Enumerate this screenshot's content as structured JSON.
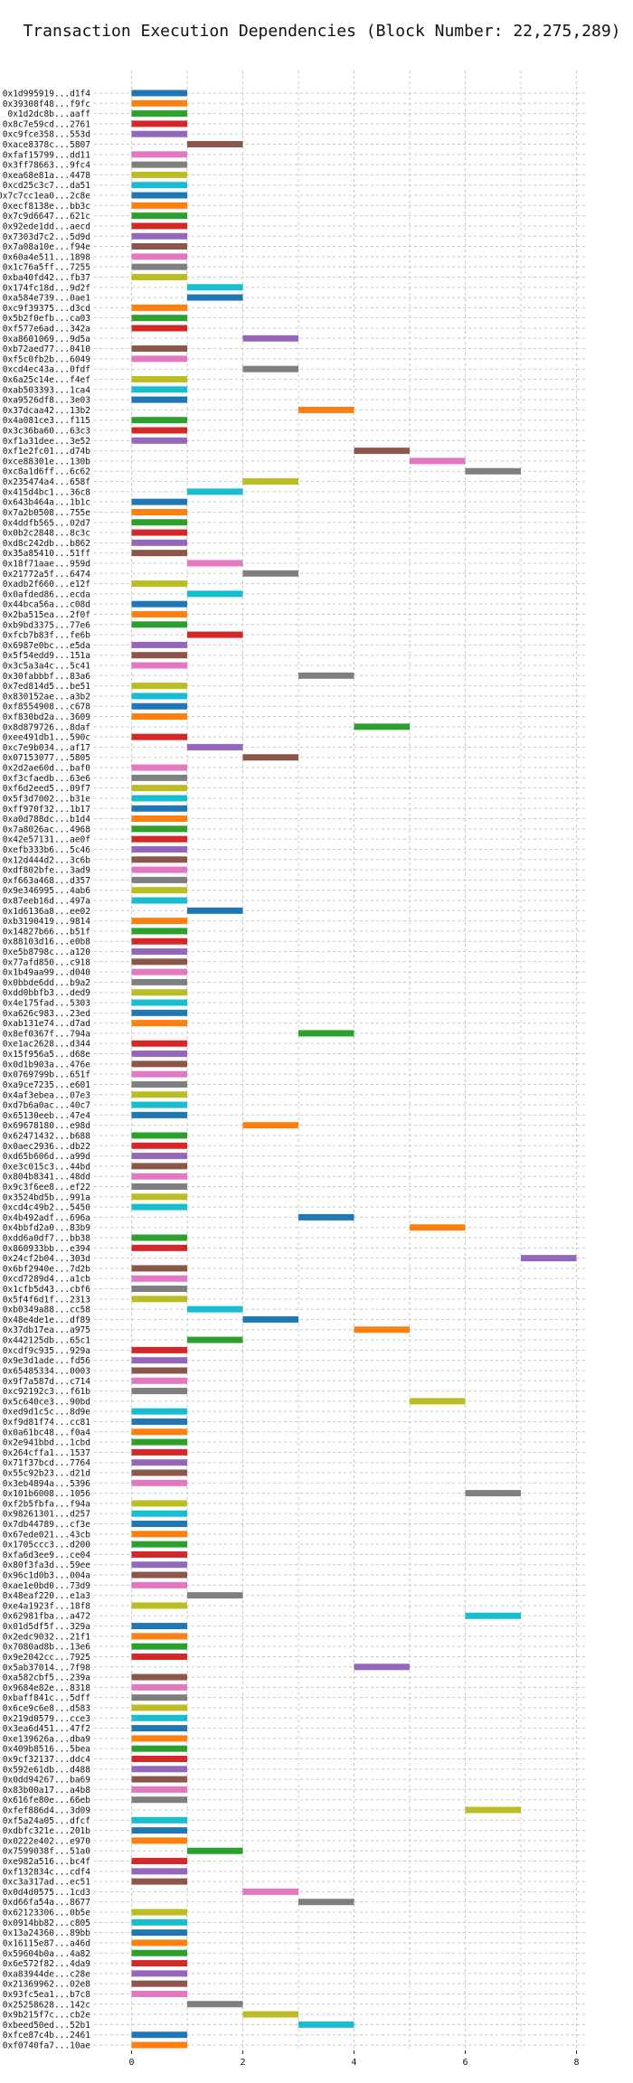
{
  "chart_data": {
    "type": "bar",
    "orientation": "horizontal-range",
    "title": "Transaction Execution Dependencies (Block Number: 22,275,289)",
    "xlabel": "",
    "ylabel": "",
    "xlim": [
      -0.6,
      8.2
    ],
    "xticks": [
      0,
      2,
      4,
      6,
      8
    ],
    "grid": true,
    "colors": [
      "#1f77b4",
      "#ff7f0e",
      "#2ca02c",
      "#d62728",
      "#9467bd",
      "#8c564b",
      "#e377c2",
      "#7f7f7f",
      "#bcbd22",
      "#17becf"
    ],
    "transactions": [
      {
        "label": "0x1d995919...d1f4",
        "start": 0,
        "end": 1
      },
      {
        "label": "0x39308f48...f9fc",
        "start": 0,
        "end": 1
      },
      {
        "label": "0x1d2dc8b...aaff",
        "start": 0,
        "end": 1
      },
      {
        "label": "0x8c7e59cd...2761",
        "start": 0,
        "end": 1
      },
      {
        "label": "0xc9fce358...553d",
        "start": 0,
        "end": 1
      },
      {
        "label": "0xace8378c...5807",
        "start": 1,
        "end": 2
      },
      {
        "label": "0xfaf15799...dd11",
        "start": 0,
        "end": 1
      },
      {
        "label": "0x3ff78663...9fc4",
        "start": 0,
        "end": 1
      },
      {
        "label": "0xea68e81a...4478",
        "start": 0,
        "end": 1
      },
      {
        "label": "0xcd25c3c7...da51",
        "start": 0,
        "end": 1
      },
      {
        "label": "0x7c7cc1ea0...2c8e",
        "start": 0,
        "end": 1
      },
      {
        "label": "0xecf8138e...bb3c",
        "start": 0,
        "end": 1
      },
      {
        "label": "0x7c9d6647...621c",
        "start": 0,
        "end": 1
      },
      {
        "label": "0x92ede1dd...aecd",
        "start": 0,
        "end": 1
      },
      {
        "label": "0x7303d7c2...5d9d",
        "start": 0,
        "end": 1
      },
      {
        "label": "0x7a08a10e...f94e",
        "start": 0,
        "end": 1
      },
      {
        "label": "0x60a4e511...1898",
        "start": 0,
        "end": 1
      },
      {
        "label": "0x1c76a5ff...7255",
        "start": 0,
        "end": 1
      },
      {
        "label": "0xba40fd42...fb37",
        "start": 0,
        "end": 1
      },
      {
        "label": "0x174fc18d...9d2f",
        "start": 1,
        "end": 2
      },
      {
        "label": "0xa584e739...0ae1",
        "start": 1,
        "end": 2
      },
      {
        "label": "0xc9f39375...d3cd",
        "start": 0,
        "end": 1
      },
      {
        "label": "0x5b2f0efb...ca03",
        "start": 0,
        "end": 1
      },
      {
        "label": "0xf577e6ad...342a",
        "start": 0,
        "end": 1
      },
      {
        "label": "0xa8601069...9d5a",
        "start": 2,
        "end": 3
      },
      {
        "label": "0xb72aed77...0410",
        "start": 0,
        "end": 1
      },
      {
        "label": "0xf5c0fb2b...6049",
        "start": 0,
        "end": 1
      },
      {
        "label": "0xcd4ec43a...0fdf",
        "start": 2,
        "end": 3
      },
      {
        "label": "0x6a25c14e...f4ef",
        "start": 0,
        "end": 1
      },
      {
        "label": "0xab503393...1ca4",
        "start": 0,
        "end": 1
      },
      {
        "label": "0xa9526df8...3e03",
        "start": 0,
        "end": 1
      },
      {
        "label": "0x37dcaa42...13b2",
        "start": 3,
        "end": 4
      },
      {
        "label": "0x4a081ce3...f115",
        "start": 0,
        "end": 1
      },
      {
        "label": "0x3c36ba60...63c3",
        "start": 0,
        "end": 1
      },
      {
        "label": "0xf1a31dee...3e52",
        "start": 0,
        "end": 1
      },
      {
        "label": "0xf1e2fc01...d74b",
        "start": 4,
        "end": 5
      },
      {
        "label": "0xce88301e...130b",
        "start": 5,
        "end": 6
      },
      {
        "label": "0xc8a1d6ff...6c62",
        "start": 6,
        "end": 7
      },
      {
        "label": "0x235474a4...658f",
        "start": 2,
        "end": 3
      },
      {
        "label": "0x415d4bc1...36c8",
        "start": 1,
        "end": 2
      },
      {
        "label": "0x643b464a...1b1c",
        "start": 0,
        "end": 1
      },
      {
        "label": "0x7a2b0508...755e",
        "start": 0,
        "end": 1
      },
      {
        "label": "0x4ddfb565...02d7",
        "start": 0,
        "end": 1
      },
      {
        "label": "0x0b2c2848...8c3c",
        "start": 0,
        "end": 1
      },
      {
        "label": "0xd8c242db...b862",
        "start": 0,
        "end": 1
      },
      {
        "label": "0x35a85410...51ff",
        "start": 0,
        "end": 1
      },
      {
        "label": "0x18f71aae...959d",
        "start": 1,
        "end": 2
      },
      {
        "label": "0x21772a5f...6474",
        "start": 2,
        "end": 3
      },
      {
        "label": "0xadb2f660...e12f",
        "start": 0,
        "end": 1
      },
      {
        "label": "0x0afded86...ecda",
        "start": 1,
        "end": 2
      },
      {
        "label": "0x44bca56a...c08d",
        "start": 0,
        "end": 1
      },
      {
        "label": "0x2ba515ea...2f0f",
        "start": 0,
        "end": 1
      },
      {
        "label": "0xb9bd3375...77e6",
        "start": 0,
        "end": 1
      },
      {
        "label": "0xfcb7b83f...fe6b",
        "start": 1,
        "end": 2
      },
      {
        "label": "0x6987e0bc...e5da",
        "start": 0,
        "end": 1
      },
      {
        "label": "0x5f54edd9...151a",
        "start": 0,
        "end": 1
      },
      {
        "label": "0x3c5a3a4c...5c41",
        "start": 0,
        "end": 1
      },
      {
        "label": "0x30fabbbf...83a6",
        "start": 3,
        "end": 4
      },
      {
        "label": "0x7ed814d5...be51",
        "start": 0,
        "end": 1
      },
      {
        "label": "0x830152ae...a3b2",
        "start": 0,
        "end": 1
      },
      {
        "label": "0xf8554908...c678",
        "start": 0,
        "end": 1
      },
      {
        "label": "0xf830bd2a...3609",
        "start": 0,
        "end": 1
      },
      {
        "label": "0x8d879726...8daf",
        "start": 4,
        "end": 5
      },
      {
        "label": "0xee491db1...590c",
        "start": 0,
        "end": 1
      },
      {
        "label": "0xc7e9b034...af17",
        "start": 1,
        "end": 2
      },
      {
        "label": "0x07153077...5805",
        "start": 2,
        "end": 3
      },
      {
        "label": "0x2d2ae60d...baf0",
        "start": 0,
        "end": 1
      },
      {
        "label": "0xf3cfaedb...63e6",
        "start": 0,
        "end": 1
      },
      {
        "label": "0xf6d2eed5...09f7",
        "start": 0,
        "end": 1
      },
      {
        "label": "0x5f3d7002...b31e",
        "start": 0,
        "end": 1
      },
      {
        "label": "0xff970f32...1b17",
        "start": 0,
        "end": 1
      },
      {
        "label": "0xa0d788dc...b1d4",
        "start": 0,
        "end": 1
      },
      {
        "label": "0x7a8026ac...4968",
        "start": 0,
        "end": 1
      },
      {
        "label": "0x42e57131...ae0f",
        "start": 0,
        "end": 1
      },
      {
        "label": "0xefb333b6...5c46",
        "start": 0,
        "end": 1
      },
      {
        "label": "0x12d444d2...3c6b",
        "start": 0,
        "end": 1
      },
      {
        "label": "0xdf802bfe...3ad9",
        "start": 0,
        "end": 1
      },
      {
        "label": "0xf663a468...d357",
        "start": 0,
        "end": 1
      },
      {
        "label": "0x9e346995...4ab6",
        "start": 0,
        "end": 1
      },
      {
        "label": "0x87eeb16d...497a",
        "start": 0,
        "end": 1
      },
      {
        "label": "0x1d6136a8...ee02",
        "start": 1,
        "end": 2
      },
      {
        "label": "0xb3190419...9814",
        "start": 0,
        "end": 1
      },
      {
        "label": "0x14827b66...b51f",
        "start": 0,
        "end": 1
      },
      {
        "label": "0x88103d16...e0b8",
        "start": 0,
        "end": 1
      },
      {
        "label": "0xe5b8798c...a120",
        "start": 0,
        "end": 1
      },
      {
        "label": "0x77afd850...c918",
        "start": 0,
        "end": 1
      },
      {
        "label": "0x1b49aa99...d040",
        "start": 0,
        "end": 1
      },
      {
        "label": "0x0bbde6dd...b9a2",
        "start": 0,
        "end": 1
      },
      {
        "label": "0xdd0bbfb3...ded9",
        "start": 0,
        "end": 1
      },
      {
        "label": "0x4e175fad...5303",
        "start": 0,
        "end": 1
      },
      {
        "label": "0xa626c983...23ed",
        "start": 0,
        "end": 1
      },
      {
        "label": "0xab131e74...d7ad",
        "start": 0,
        "end": 1
      },
      {
        "label": "0x8ef0367f...794a",
        "start": 3,
        "end": 4
      },
      {
        "label": "0xe1ac2628...d344",
        "start": 0,
        "end": 1
      },
      {
        "label": "0x15f956a5...d68e",
        "start": 0,
        "end": 1
      },
      {
        "label": "0x0d1b903a...476e",
        "start": 0,
        "end": 1
      },
      {
        "label": "0x0769799b...651f",
        "start": 0,
        "end": 1
      },
      {
        "label": "0xa9ce7235...e601",
        "start": 0,
        "end": 1
      },
      {
        "label": "0x4af3ebea...07e3",
        "start": 0,
        "end": 1
      },
      {
        "label": "0xd7b6a0ac...40c7",
        "start": 0,
        "end": 1
      },
      {
        "label": "0x65130eeb...47e4",
        "start": 0,
        "end": 1
      },
      {
        "label": "0x69678180...e98d",
        "start": 2,
        "end": 3
      },
      {
        "label": "0x62471432...b688",
        "start": 0,
        "end": 1
      },
      {
        "label": "0x0aec2936...db22",
        "start": 0,
        "end": 1
      },
      {
        "label": "0xd65b606d...a99d",
        "start": 0,
        "end": 1
      },
      {
        "label": "0xe3c015c3...44bd",
        "start": 0,
        "end": 1
      },
      {
        "label": "0x804b8341...48dd",
        "start": 0,
        "end": 1
      },
      {
        "label": "0x9c3f6ee8...ef22",
        "start": 0,
        "end": 1
      },
      {
        "label": "0x3524bd5b...991a",
        "start": 0,
        "end": 1
      },
      {
        "label": "0xcd4c49b2...5450",
        "start": 0,
        "end": 1
      },
      {
        "label": "0x4b492adf...696a",
        "start": 3,
        "end": 4
      },
      {
        "label": "0x4bbfd2a0...83b9",
        "start": 5,
        "end": 6
      },
      {
        "label": "0xdd6a0df7...bb38",
        "start": 0,
        "end": 1
      },
      {
        "label": "0x860933bb...e394",
        "start": 0,
        "end": 1
      },
      {
        "label": "0x24cf2b04...303d",
        "start": 7,
        "end": 8
      },
      {
        "label": "0x6bf2940e...7d2b",
        "start": 0,
        "end": 1
      },
      {
        "label": "0xcd7289d4...a1cb",
        "start": 0,
        "end": 1
      },
      {
        "label": "0x1cfb5d43...cbf6",
        "start": 0,
        "end": 1
      },
      {
        "label": "0x5f4f6d1f...2313",
        "start": 0,
        "end": 1
      },
      {
        "label": "0xb0349a88...cc58",
        "start": 1,
        "end": 2
      },
      {
        "label": "0x48e4de1e...df89",
        "start": 2,
        "end": 3
      },
      {
        "label": "0x37db17ea...a975",
        "start": 4,
        "end": 5
      },
      {
        "label": "0x442125db...65c1",
        "start": 1,
        "end": 2
      },
      {
        "label": "0xcdf9c935...929a",
        "start": 0,
        "end": 1
      },
      {
        "label": "0x9e3d1ade...fd56",
        "start": 0,
        "end": 1
      },
      {
        "label": "0x65485334...0003",
        "start": 0,
        "end": 1
      },
      {
        "label": "0x9f7a587d...c714",
        "start": 0,
        "end": 1
      },
      {
        "label": "0xc92192c3...f61b",
        "start": 0,
        "end": 1
      },
      {
        "label": "0x5c640ce3...90bd",
        "start": 5,
        "end": 6
      },
      {
        "label": "0xed9d1c5c...8d9e",
        "start": 0,
        "end": 1
      },
      {
        "label": "0xf9d81f74...cc81",
        "start": 0,
        "end": 1
      },
      {
        "label": "0x0a61bc48...f0a4",
        "start": 0,
        "end": 1
      },
      {
        "label": "0x2e941bbd...1cbd",
        "start": 0,
        "end": 1
      },
      {
        "label": "0x264cffa1...1537",
        "start": 0,
        "end": 1
      },
      {
        "label": "0x71f37bcd...7764",
        "start": 0,
        "end": 1
      },
      {
        "label": "0x55c92b23...d21d",
        "start": 0,
        "end": 1
      },
      {
        "label": "0x3eb4894a...5396",
        "start": 0,
        "end": 1
      },
      {
        "label": "0x101b6008...1056",
        "start": 6,
        "end": 7
      },
      {
        "label": "0xf2b5fbfa...f94a",
        "start": 0,
        "end": 1
      },
      {
        "label": "0x98261301...d257",
        "start": 0,
        "end": 1
      },
      {
        "label": "0x7db44789...cf3e",
        "start": 0,
        "end": 1
      },
      {
        "label": "0x67ede021...43cb",
        "start": 0,
        "end": 1
      },
      {
        "label": "0x1705ccc3...d200",
        "start": 0,
        "end": 1
      },
      {
        "label": "0xfa6d3ee9...ce04",
        "start": 0,
        "end": 1
      },
      {
        "label": "0x80f3fa3d...59ee",
        "start": 0,
        "end": 1
      },
      {
        "label": "0x96c1d0b3...004a",
        "start": 0,
        "end": 1
      },
      {
        "label": "0xae1e0bd0...73d9",
        "start": 0,
        "end": 1
      },
      {
        "label": "0x48eaf220...e1a3",
        "start": 1,
        "end": 2
      },
      {
        "label": "0xe4a1923f...18f8",
        "start": 0,
        "end": 1
      },
      {
        "label": "0x62981fba...a472",
        "start": 6,
        "end": 7
      },
      {
        "label": "0x01d5df5f...329a",
        "start": 0,
        "end": 1
      },
      {
        "label": "0x2edc9032...21f1",
        "start": 0,
        "end": 1
      },
      {
        "label": "0x7080ad8b...13e6",
        "start": 0,
        "end": 1
      },
      {
        "label": "0x9e2042cc...7925",
        "start": 0,
        "end": 1
      },
      {
        "label": "0x5ab37014...7f98",
        "start": 4,
        "end": 5
      },
      {
        "label": "0xa582cbf5...239a",
        "start": 0,
        "end": 1
      },
      {
        "label": "0x9684e82e...8318",
        "start": 0,
        "end": 1
      },
      {
        "label": "0xbaff841c...5dff",
        "start": 0,
        "end": 1
      },
      {
        "label": "0x6ce9c6e8...d583",
        "start": 0,
        "end": 1
      },
      {
        "label": "0x219d0579...cce3",
        "start": 0,
        "end": 1
      },
      {
        "label": "0x3ea6d451...47f2",
        "start": 0,
        "end": 1
      },
      {
        "label": "0xe139626a...dba9",
        "start": 0,
        "end": 1
      },
      {
        "label": "0x409b8516...5bea",
        "start": 0,
        "end": 1
      },
      {
        "label": "0x9cf32137...ddc4",
        "start": 0,
        "end": 1
      },
      {
        "label": "0x592e61db...d488",
        "start": 0,
        "end": 1
      },
      {
        "label": "0x0dd94267...ba69",
        "start": 0,
        "end": 1
      },
      {
        "label": "0x83b00a17...a4b8",
        "start": 0,
        "end": 1
      },
      {
        "label": "0x616fe80e...66eb",
        "start": 0,
        "end": 1
      },
      {
        "label": "0xfef886d4...3d09",
        "start": 6,
        "end": 7
      },
      {
        "label": "0xf5a24a05...dfcf",
        "start": 0,
        "end": 1
      },
      {
        "label": "0xdbfc321e...201b",
        "start": 0,
        "end": 1
      },
      {
        "label": "0x0222e402...e970",
        "start": 0,
        "end": 1
      },
      {
        "label": "0x7599038f...51a0",
        "start": 1,
        "end": 2
      },
      {
        "label": "0xe982a516...bc4f",
        "start": 0,
        "end": 1
      },
      {
        "label": "0xf132834c...cdf4",
        "start": 0,
        "end": 1
      },
      {
        "label": "0xc3a317ad...ec51",
        "start": 0,
        "end": 1
      },
      {
        "label": "0x0d4d0575...1cd3",
        "start": 2,
        "end": 3
      },
      {
        "label": "0xd66fa54a...8677",
        "start": 3,
        "end": 4
      },
      {
        "label": "0x62123306...0b5e",
        "start": 0,
        "end": 1
      },
      {
        "label": "0x0914bb82...c805",
        "start": 0,
        "end": 1
      },
      {
        "label": "0x13a24360...89bb",
        "start": 0,
        "end": 1
      },
      {
        "label": "0x16115e87...a46d",
        "start": 0,
        "end": 1
      },
      {
        "label": "0x59604b0a...4a82",
        "start": 0,
        "end": 1
      },
      {
        "label": "0x6e572f82...4da9",
        "start": 0,
        "end": 1
      },
      {
        "label": "0xa83944de...c28e",
        "start": 0,
        "end": 1
      },
      {
        "label": "0x21369962...02e8",
        "start": 0,
        "end": 1
      },
      {
        "label": "0x93fc5ea1...b7c8",
        "start": 0,
        "end": 1
      },
      {
        "label": "0x25258628...142c",
        "start": 1,
        "end": 2
      },
      {
        "label": "0x9b215f7c...cb2e",
        "start": 2,
        "end": 3
      },
      {
        "label": "0xbeed50ed...52b1",
        "start": 3,
        "end": 4
      },
      {
        "label": "0xfce87c4b...2461",
        "start": 0,
        "end": 1
      },
      {
        "label": "0xf0740fa7...10ae",
        "start": 0,
        "end": 1
      }
    ]
  }
}
